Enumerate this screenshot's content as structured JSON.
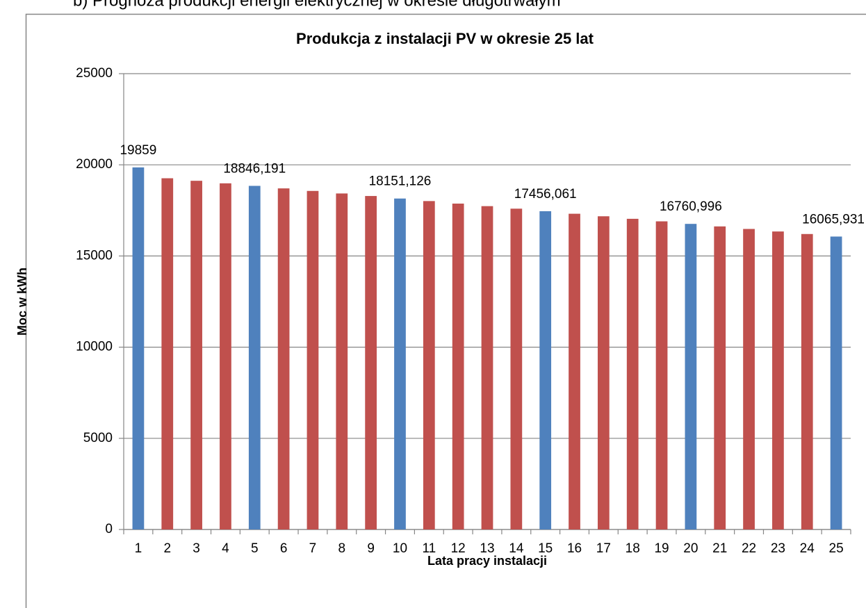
{
  "caption": "b)  Prognoza produkcji energii elektrycznej w okresie długotrwałym",
  "chart_data": {
    "type": "bar",
    "title": "Produkcja z instalacji PV w okresie 25 lat",
    "x_label": "Lata pracy instalacji",
    "y_label": "Moc w kWh",
    "categories": [
      "1",
      "2",
      "3",
      "4",
      "5",
      "6",
      "7",
      "8",
      "9",
      "10",
      "11",
      "12",
      "13",
      "14",
      "15",
      "16",
      "17",
      "18",
      "19",
      "20",
      "21",
      "22",
      "23",
      "24",
      "25"
    ],
    "values": [
      19859,
      19263.23,
      19124.217,
      18985.204,
      18846.191,
      18707.178,
      18568.165,
      18429.152,
      18290.139,
      18151.126,
      18012.113,
      17873.1,
      17734.087,
      17595.074,
      17456.061,
      17317.048,
      17178.035,
      17039.022,
      16900.009,
      16760.996,
      16621.983,
      16482.97,
      16343.957,
      16204.944,
      16065.931
    ],
    "value_labels": [
      "19859",
      null,
      null,
      null,
      "18846,191",
      null,
      null,
      null,
      null,
      "18151,126",
      null,
      null,
      null,
      null,
      "17456,061",
      null,
      null,
      null,
      null,
      "16760,996",
      null,
      null,
      null,
      null,
      "16065,931"
    ],
    "colors": [
      "#4f81bd",
      "#c0504d",
      "#c0504d",
      "#c0504d",
      "#4f81bd",
      "#c0504d",
      "#c0504d",
      "#c0504d",
      "#c0504d",
      "#4f81bd",
      "#c0504d",
      "#c0504d",
      "#c0504d",
      "#c0504d",
      "#4f81bd",
      "#c0504d",
      "#c0504d",
      "#c0504d",
      "#c0504d",
      "#4f81bd",
      "#c0504d",
      "#c0504d",
      "#c0504d",
      "#c0504d",
      "#4f81bd"
    ],
    "ylim": [
      0,
      25000
    ],
    "yticks": [
      0,
      5000,
      10000,
      15000,
      20000,
      25000
    ],
    "grid": true
  }
}
